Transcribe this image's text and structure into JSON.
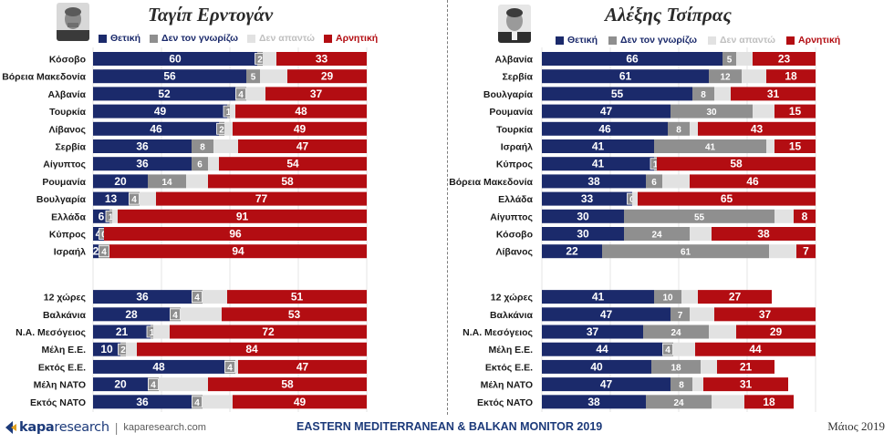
{
  "colors": {
    "positive": "#1b2a6b",
    "dont_know": "#8f8f8f",
    "no_answer": "#e2e2e2",
    "negative": "#b30d12"
  },
  "legend": {
    "positive": "Θετική",
    "dont_know": "Δεν τον γνωρίζω",
    "no_answer": "Δεν απαντώ",
    "negative": "Αρνητική"
  },
  "chart_data": [
    {
      "type": "bar",
      "orientation": "horizontal",
      "stacked": true,
      "title": "Ταγίπ Ερντογάν",
      "portrait_icon": "portrait-erdogan",
      "legend_position": "top",
      "grid": true,
      "xlim": [
        0,
        100
      ],
      "categories": [
        "Κόσοβο",
        "Βόρεια Μακεδονία",
        "Αλβανία",
        "Τουρκία",
        "Λίβανος",
        "Σερβία",
        "Αίγυπτος",
        "Ρουμανία",
        "Βουλγαρία",
        "Ελλάδα",
        "Κύπρος",
        "Ισραήλ",
        "12 χώρες",
        "Βαλκάνια",
        "Ν.Α. Μεσόγειος",
        "Μέλη Ε.Ε.",
        "Εκτός Ε.Ε.",
        "Μέλη ΝΑΤΟ",
        "Εκτός ΝΑΤΟ"
      ],
      "group_break_before": 12,
      "series": [
        {
          "name": "Θετική",
          "values": [
            60,
            56,
            52,
            49,
            46,
            36,
            36,
            20,
            13,
            6,
            4,
            2,
            36,
            28,
            21,
            10,
            48,
            20,
            36
          ]
        },
        {
          "name": "Δεν τον γνωρίζω",
          "values": [
            2,
            5,
            4,
            1,
            2,
            8,
            6,
            14,
            4,
            1,
            0,
            4,
            4,
            4,
            1,
            2,
            4,
            4,
            4
          ]
        },
        {
          "name": "Δεν απαντώ",
          "values": [
            5,
            10,
            7,
            2,
            3,
            9,
            4,
            8,
            6,
            2,
            0,
            0,
            9,
            15,
            6,
            4,
            1,
            18,
            11
          ]
        },
        {
          "name": "Αρνητική",
          "values": [
            33,
            29,
            37,
            48,
            49,
            47,
            54,
            58,
            77,
            91,
            96,
            94,
            51,
            53,
            72,
            84,
            47,
            58,
            49
          ]
        }
      ]
    },
    {
      "type": "bar",
      "orientation": "horizontal",
      "stacked": true,
      "title": "Αλέξης Τσίπρας",
      "portrait_icon": "portrait-tsipras",
      "legend_position": "top",
      "grid": true,
      "xlim": [
        0,
        100
      ],
      "categories": [
        "Αλβανία",
        "Σερβία",
        "Βουλγαρία",
        "Ρουμανία",
        "Τουρκία",
        "Ισραήλ",
        "Κύπρος",
        "Βόρεια Μακεδονία",
        "Ελλάδα",
        "Αίγυπτος",
        "Κόσοβο",
        "Λίβανος",
        "12 χώρες",
        "Βαλκάνια",
        "Ν.Α. Μεσόγειος",
        "Μέλη Ε.Ε.",
        "Εκτός Ε.Ε.",
        "Μέλη ΝΑΤΟ",
        "Εκτός ΝΑΤΟ"
      ],
      "group_break_before": 12,
      "series": [
        {
          "name": "Θετική",
          "values": [
            66,
            61,
            55,
            47,
            46,
            41,
            41,
            38,
            33,
            30,
            30,
            22,
            41,
            47,
            37,
            44,
            40,
            47,
            38
          ]
        },
        {
          "name": "Δεν τον γνωρίζω",
          "values": [
            5,
            12,
            8,
            30,
            8,
            41,
            1,
            6,
            0,
            55,
            24,
            61,
            10,
            7,
            24,
            4,
            18,
            8,
            24
          ]
        },
        {
          "name": "Δεν απαντώ",
          "values": [
            6,
            9,
            6,
            8,
            3,
            3,
            0,
            10,
            2,
            7,
            8,
            10,
            6,
            9,
            10,
            8,
            6,
            4,
            12
          ]
        },
        {
          "name": "Αρνητική",
          "values": [
            23,
            18,
            31,
            15,
            43,
            15,
            58,
            46,
            65,
            8,
            38,
            7,
            27,
            37,
            29,
            44,
            21,
            31,
            18
          ]
        }
      ]
    }
  ],
  "footer": {
    "brand_bold": "kapa",
    "brand_light": "research",
    "url": "kaparesearch.com",
    "title": "EASTERN MEDITERRANEAN & BALKAN MONITOR 2019",
    "date": "Μάιος 2019"
  }
}
